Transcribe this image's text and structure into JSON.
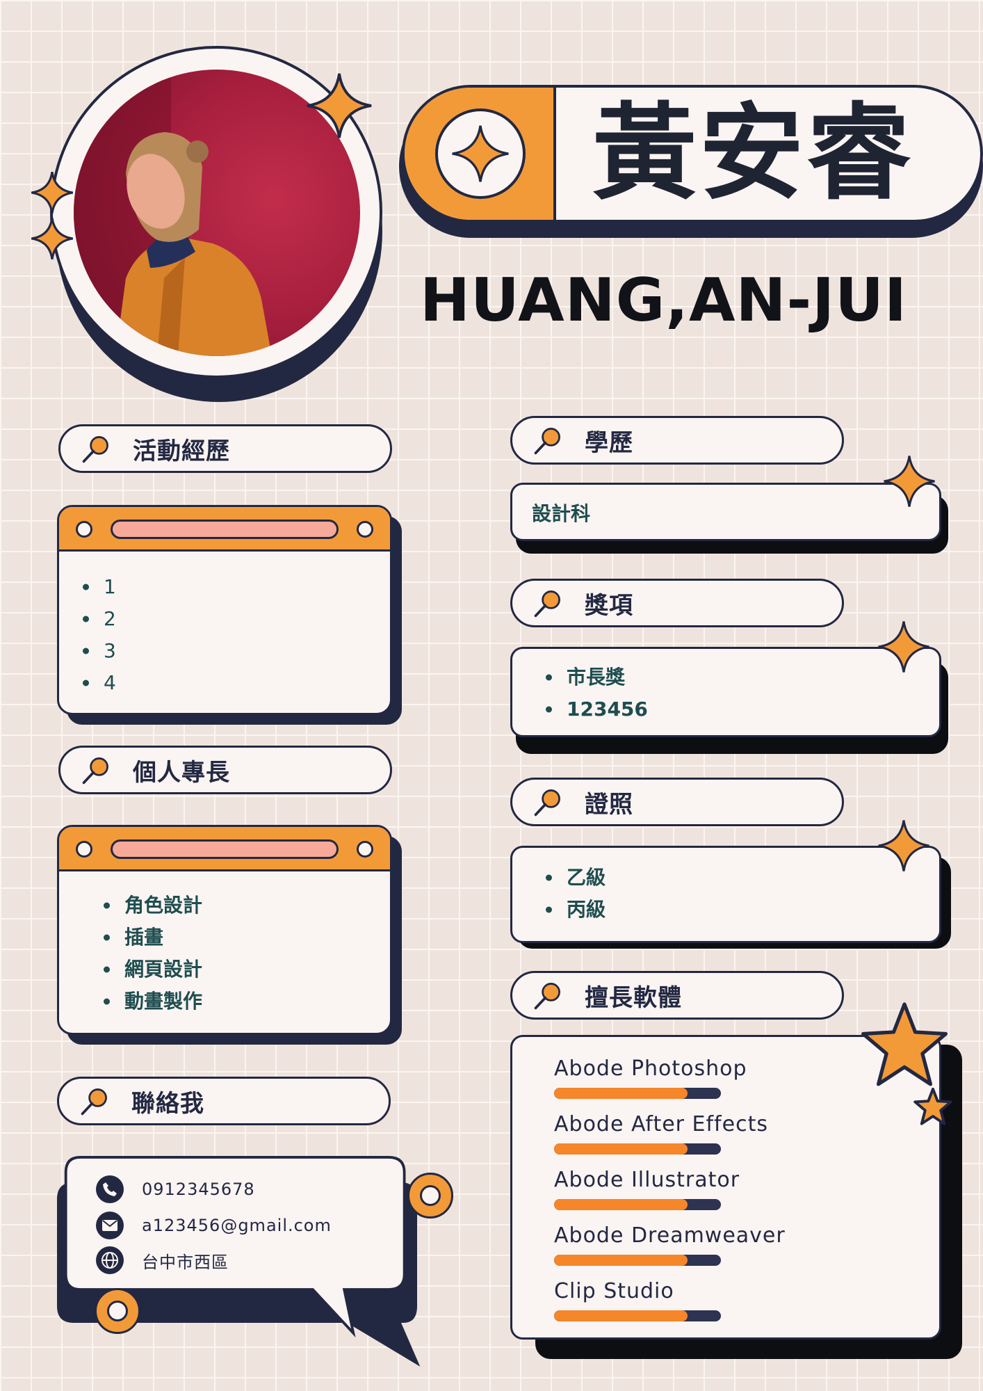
{
  "name_cn": "黃安睿",
  "name_en": "HUANG,AN-JUI",
  "colors": {
    "orange": "#f39a38",
    "navy": "#232842",
    "cream": "#faf4f2",
    "bullet": "#1e4d4f",
    "bar_fill": "#f5862a"
  },
  "sections": {
    "activities": {
      "title": "活動經歷",
      "items": [
        "1",
        "2",
        "3",
        "4"
      ]
    },
    "skills": {
      "title": "個人專長",
      "items": [
        "角色設計",
        "插畫",
        "網頁設計",
        "動畫製作"
      ]
    },
    "contact": {
      "title": "聯絡我",
      "phone": "0912345678",
      "email": "a123456@gmail.com",
      "address": "台中市西區"
    },
    "education": {
      "title": "學歷",
      "value": "設計科"
    },
    "awards": {
      "title": "獎項",
      "items": [
        "市長獎",
        "123456"
      ]
    },
    "licenses": {
      "title": "證照",
      "items": [
        "乙級",
        "丙級"
      ]
    },
    "software": {
      "title": "擅長軟體",
      "items": [
        {
          "name": "Abode Photoshop",
          "level": 0.8
        },
        {
          "name": "Abode After Effects",
          "level": 0.8
        },
        {
          "name": "Abode Illustrator",
          "level": 0.8
        },
        {
          "name": "Abode Dreamweaver",
          "level": 0.8
        },
        {
          "name": "Clip Studio",
          "level": 0.8
        }
      ]
    }
  },
  "icons": {
    "section": "magnifier-icon",
    "phone": "phone-icon",
    "email": "mail-icon",
    "address": "globe-icon",
    "sparkle": "sparkle-icon"
  }
}
